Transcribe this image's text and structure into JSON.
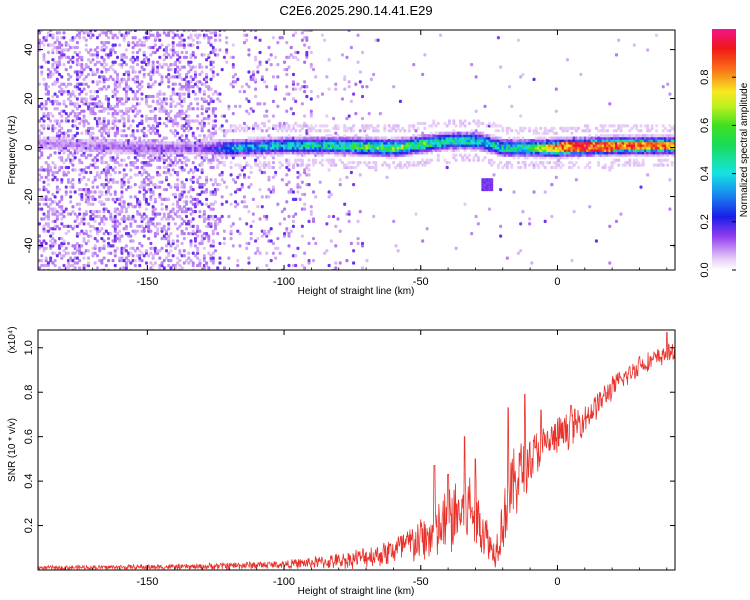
{
  "chart_data": [
    {
      "type": "heatmap",
      "title": "C2E6.2025.290.14.41.E29",
      "xlabel": "Height of straight line (km)",
      "ylabel": "Frequency (Hz)",
      "xlim": [
        -190,
        43
      ],
      "ylim": [
        -50,
        48
      ],
      "xticks": [
        -150,
        -100,
        -50,
        0
      ],
      "xtick_labels": [
        "-150",
        "-100",
        "-50",
        "0"
      ],
      "yticks": [
        -40,
        -20,
        0,
        20,
        40
      ],
      "ytick_labels": [
        "-40",
        "-20",
        "0",
        "20",
        "40"
      ],
      "colorbar": {
        "label": "Normalized spectral amplitude",
        "range": [
          0,
          1
        ],
        "ticks": [
          0,
          0.2,
          0.4,
          0.6,
          0.8
        ],
        "tick_labels": [
          "0.0",
          "0.2",
          "0.4",
          "0.6",
          "0.8"
        ],
        "colormap": "rainbow (white-violet-blue-cyan-green-yellow-red-magenta)"
      },
      "ridge_center_hz": [
        {
          "x": -190,
          "y": 2
        },
        {
          "x": -150,
          "y": 0
        },
        {
          "x": -120,
          "y": 0
        },
        {
          "x": -100,
          "y": 1
        },
        {
          "x": -80,
          "y": 1
        },
        {
          "x": -60,
          "y": 0
        },
        {
          "x": -40,
          "y": 3
        },
        {
          "x": -30,
          "y": 3
        },
        {
          "x": -20,
          "y": 0
        },
        {
          "x": 0,
          "y": 0
        },
        {
          "x": 20,
          "y": 1
        },
        {
          "x": 43,
          "y": 1
        }
      ],
      "peak_amplitude": [
        {
          "x": -190,
          "v": 0.1
        },
        {
          "x": -130,
          "v": 0.15
        },
        {
          "x": -120,
          "v": 0.4
        },
        {
          "x": -100,
          "v": 0.45
        },
        {
          "x": -80,
          "v": 0.55
        },
        {
          "x": -60,
          "v": 0.7
        },
        {
          "x": -40,
          "v": 0.55
        },
        {
          "x": -25,
          "v": 0.5
        },
        {
          "x": -10,
          "v": 0.6
        },
        {
          "x": 0,
          "v": 0.9
        },
        {
          "x": 10,
          "v": 0.95
        },
        {
          "x": 30,
          "v": 0.9
        },
        {
          "x": 43,
          "v": 0.85
        }
      ],
      "side_feature": {
        "x_range": [
          -28,
          -24
        ],
        "y_range": [
          -17,
          -13
        ]
      }
    },
    {
      "type": "line",
      "xlabel": "Height of straight line (km)",
      "ylabel": "SNR (10 * v/v)",
      "y_scale_label": "(x10⁴)",
      "xlim": [
        -190,
        43
      ],
      "ylim": [
        0,
        1.08
      ],
      "xticks": [
        -150,
        -100,
        -50,
        0
      ],
      "xtick_labels": [
        "-150",
        "-100",
        "-50",
        "0"
      ],
      "yticks": [
        0.2,
        0.4,
        0.6,
        0.8,
        1.0
      ],
      "ytick_labels": [
        "0.2",
        "0.4",
        "0.6",
        "0.8",
        "1.0"
      ],
      "color": "#e8332d",
      "series": [
        {
          "name": "SNR",
          "envelope": [
            {
              "x": -190,
              "base": 0.01,
              "amp": 0.01
            },
            {
              "x": -130,
              "base": 0.015,
              "amp": 0.015
            },
            {
              "x": -120,
              "base": 0.02,
              "amp": 0.02
            },
            {
              "x": -100,
              "base": 0.025,
              "amp": 0.02
            },
            {
              "x": -80,
              "base": 0.04,
              "amp": 0.04
            },
            {
              "x": -65,
              "base": 0.07,
              "amp": 0.06
            },
            {
              "x": -55,
              "base": 0.11,
              "amp": 0.1
            },
            {
              "x": -45,
              "base": 0.16,
              "amp": 0.14
            },
            {
              "x": -38,
              "base": 0.24,
              "amp": 0.2
            },
            {
              "x": -32,
              "base": 0.28,
              "amp": 0.2
            },
            {
              "x": -27,
              "base": 0.18,
              "amp": 0.14
            },
            {
              "x": -23,
              "base": 0.07,
              "amp": 0.07
            },
            {
              "x": -20,
              "base": 0.22,
              "amp": 0.16
            },
            {
              "x": -15,
              "base": 0.42,
              "amp": 0.2
            },
            {
              "x": -10,
              "base": 0.5,
              "amp": 0.14
            },
            {
              "x": -5,
              "base": 0.56,
              "amp": 0.1
            },
            {
              "x": 0,
              "base": 0.6,
              "amp": 0.1
            },
            {
              "x": 10,
              "base": 0.68,
              "amp": 0.08
            },
            {
              "x": 20,
              "base": 0.82,
              "amp": 0.06
            },
            {
              "x": 30,
              "base": 0.92,
              "amp": 0.05
            },
            {
              "x": 40,
              "base": 0.97,
              "amp": 0.05
            },
            {
              "x": 43,
              "base": 0.98,
              "amp": 0.04
            }
          ],
          "spikes": [
            {
              "x": -45,
              "y": 0.47
            },
            {
              "x": -40,
              "y": 0.43
            },
            {
              "x": -34,
              "y": 0.6
            },
            {
              "x": -30,
              "y": 0.5
            },
            {
              "x": -18,
              "y": 0.73
            },
            {
              "x": -12,
              "y": 0.79
            },
            {
              "x": -6,
              "y": 0.72
            },
            {
              "x": 5,
              "y": 0.74
            },
            {
              "x": 10,
              "y": 0.68
            },
            {
              "x": 30,
              "y": 0.96
            },
            {
              "x": 40,
              "y": 1.07
            }
          ]
        }
      ]
    }
  ]
}
